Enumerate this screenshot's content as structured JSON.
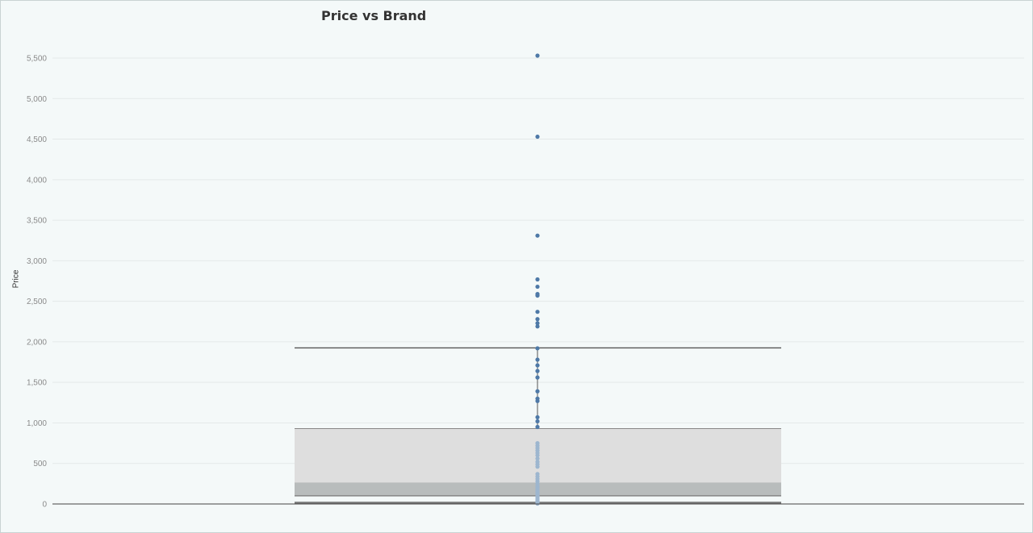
{
  "chart_data": {
    "type": "box",
    "title": "Price vs Brand",
    "ylabel": "Price",
    "xlabel": "",
    "ylim": [
      0,
      5600
    ],
    "yticks": [
      0,
      500,
      1000,
      1500,
      2000,
      2500,
      3000,
      3500,
      4000,
      4500,
      5000,
      5500
    ],
    "ytick_labels": [
      "0",
      "500",
      "1,000",
      "1,500",
      "2,000",
      "2,500",
      "3,000",
      "3,500",
      "4,000",
      "4,500",
      "5,000",
      "5,500"
    ],
    "grid": true,
    "box": {
      "lower_whisker": 15,
      "q1": 100,
      "median": 265,
      "q3": 930,
      "upper_whisker": 1925
    },
    "points": [
      5530,
      4530,
      3310,
      2770,
      2680,
      2590,
      2570,
      2370,
      2280,
      2230,
      2190,
      1920,
      1780,
      1710,
      1640,
      1560,
      1390,
      1300,
      1270,
      1070,
      1020,
      950,
      750,
      720,
      690,
      660,
      630,
      600,
      560,
      520,
      490,
      460,
      370,
      340,
      310,
      280,
      250,
      220,
      200,
      180,
      160,
      140,
      120,
      100,
      80,
      60,
      45,
      30,
      20,
      10,
      5
    ],
    "colors": {
      "point": "#4e79a7",
      "point_in_box": "#9db6cf",
      "box_outer": "#dedede",
      "box_inner": "#b8bcbc",
      "whisker": "#555555",
      "grid": "#e4e9e9",
      "axis": "#444444"
    }
  }
}
